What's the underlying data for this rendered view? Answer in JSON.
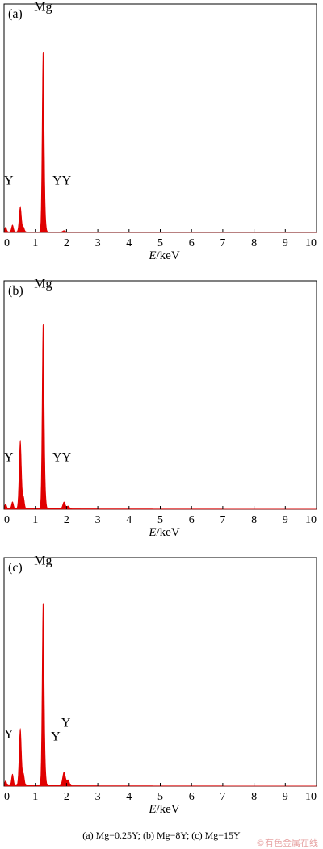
{
  "chart_data": [
    {
      "type": "line",
      "panel_label": "(a)",
      "xlabel_italic": "E",
      "xlabel_unit": "/keV",
      "xlim": [
        0,
        10
      ],
      "xticks": [
        "0",
        "1",
        "2",
        "3",
        "4",
        "5",
        "6",
        "7",
        "8",
        "9",
        "10"
      ],
      "annotations": [
        {
          "text": "Mg",
          "x": 1.25,
          "level": 0.97
        },
        {
          "text": "Y",
          "x": 0.15,
          "level": 0.21
        },
        {
          "text": "YY",
          "x": 1.85,
          "level": 0.21
        }
      ],
      "series": [
        {
          "color": "#e00000",
          "peaks": [
            {
              "x": 0.05,
              "h": 0.02,
              "w": 0.03
            },
            {
              "x": 0.27,
              "h": 0.03,
              "w": 0.03
            },
            {
              "x": 0.52,
              "h": 0.11,
              "w": 0.035
            },
            {
              "x": 0.62,
              "h": 0.02,
              "w": 0.03
            },
            {
              "x": 1.25,
              "h": 0.79,
              "w": 0.03
            },
            {
              "x": 1.31,
              "h": 0.05,
              "w": 0.03
            },
            {
              "x": 1.92,
              "h": 0.006,
              "w": 0.04
            }
          ]
        }
      ]
    },
    {
      "type": "line",
      "panel_label": "(b)",
      "xlabel_italic": "E",
      "xlabel_unit": "/keV",
      "xlim": [
        0,
        10
      ],
      "xticks": [
        "0",
        "1",
        "2",
        "3",
        "4",
        "5",
        "6",
        "7",
        "8",
        "9",
        "10"
      ],
      "annotations": [
        {
          "text": "Mg",
          "x": 1.25,
          "level": 0.97
        },
        {
          "text": "Y",
          "x": 0.15,
          "level": 0.21
        },
        {
          "text": "YY",
          "x": 1.85,
          "level": 0.21
        }
      ],
      "series": [
        {
          "color": "#e00000",
          "peaks": [
            {
              "x": 0.05,
              "h": 0.02,
              "w": 0.03
            },
            {
              "x": 0.27,
              "h": 0.03,
              "w": 0.03
            },
            {
              "x": 0.52,
              "h": 0.3,
              "w": 0.035
            },
            {
              "x": 0.62,
              "h": 0.05,
              "w": 0.03
            },
            {
              "x": 1.25,
              "h": 0.81,
              "w": 0.03
            },
            {
              "x": 1.31,
              "h": 0.06,
              "w": 0.03
            },
            {
              "x": 1.92,
              "h": 0.03,
              "w": 0.04
            },
            {
              "x": 2.05,
              "h": 0.012,
              "w": 0.04
            }
          ]
        }
      ]
    },
    {
      "type": "line",
      "panel_label": "(c)",
      "xlabel_italic": "E",
      "xlabel_unit": "/keV",
      "xlim": [
        0,
        10
      ],
      "xticks": [
        "0",
        "1",
        "2",
        "3",
        "4",
        "5",
        "6",
        "7",
        "8",
        "9",
        "10"
      ],
      "annotations": [
        {
          "text": "Mg",
          "x": 1.25,
          "level": 0.97
        },
        {
          "text": "Y",
          "x": 0.15,
          "level": 0.21
        },
        {
          "text": "Y",
          "x": 1.65,
          "level": 0.2
        },
        {
          "text": "Y",
          "x": 1.98,
          "level": 0.26
        }
      ],
      "series": [
        {
          "color": "#e00000",
          "peaks": [
            {
              "x": 0.05,
              "h": 0.02,
              "w": 0.03
            },
            {
              "x": 0.27,
              "h": 0.05,
              "w": 0.03
            },
            {
              "x": 0.52,
              "h": 0.25,
              "w": 0.035
            },
            {
              "x": 0.62,
              "h": 0.05,
              "w": 0.03
            },
            {
              "x": 1.25,
              "h": 0.8,
              "w": 0.03
            },
            {
              "x": 1.31,
              "h": 0.06,
              "w": 0.03
            },
            {
              "x": 1.92,
              "h": 0.06,
              "w": 0.045
            },
            {
              "x": 2.05,
              "h": 0.025,
              "w": 0.04
            }
          ]
        }
      ]
    }
  ],
  "caption": "(a) Mg−0.25Y; (b) Mg−8Y; (c) Mg−15Y",
  "watermark": "©有色金属在线"
}
